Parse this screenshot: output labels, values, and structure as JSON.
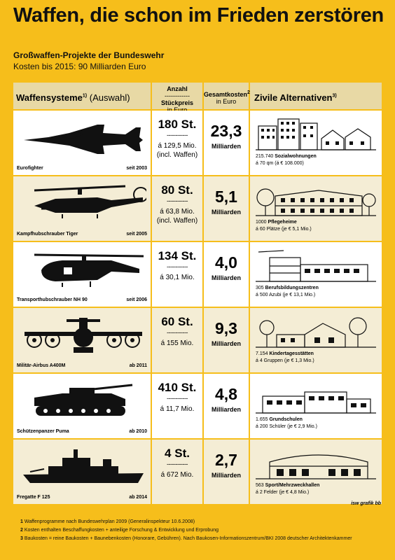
{
  "title": "Waffen, die schon im Frieden zerstören",
  "subtitle": "Großwaffen-Projekte der Bundeswehr",
  "cost_line": "Kosten bis 2015: 90 Milliarden Euro",
  "headers": {
    "weapons": "Waffensysteme",
    "weapons_sup": "1)",
    "weapons_note": " (Auswahl)",
    "count_line1": "Anzahl",
    "count_dash": "------------",
    "count_line2": "Stückpreis",
    "count_line3": "in Euro",
    "total_line1": "Gesamtkosten",
    "total_sup": "2)",
    "total_line2": "in Euro",
    "alt": "Zivile Alternativen",
    "alt_sup": "3)"
  },
  "rows": [
    {
      "name": "Eurofighter",
      "year": "seit 2003",
      "count": "180 St.",
      "dash": "------------",
      "price1": "á 129,5 Mio.",
      "price2": "(incl. Waffen)",
      "total": "23,3",
      "unit": "Milliarden",
      "alt_num": "215.740 ",
      "alt_bold": "Sozialwohnungen",
      "alt2": "á 70 qm (á € 108.000)"
    },
    {
      "name": "Kampfhubschrauber Tiger",
      "year": "seit 2005",
      "count": "80 St.",
      "dash": "------------",
      "price1": "á 63,8 Mio.",
      "price2": "(incl. Waffen)",
      "total": "5,1",
      "unit": "Milliarden",
      "alt_num": "1000 ",
      "alt_bold": "Pflegeheime",
      "alt2": "á 60 Plätze (je € 5,1 Mio.)"
    },
    {
      "name": "Transporthubschrauber NH 90",
      "year": "seit 2006",
      "count": "134 St.",
      "dash": "------------",
      "price1": "á 30,1 Mio.",
      "price2": "",
      "total": "4,0",
      "unit": "Milliarden",
      "alt_num": "305 ",
      "alt_bold": "Berufsbildungszentren",
      "alt2": "á 500 Azubi (je € 13,1 Mio.)"
    },
    {
      "name": "Militär-Airbus A400M",
      "year": "ab 2011",
      "count": "60 St.",
      "dash": "------------",
      "price1": "á 155 Mio.",
      "price2": "",
      "total": "9,3",
      "unit": "Milliarden",
      "alt_num": "7.154 ",
      "alt_bold": "Kindertagesstätten",
      "alt2": "á 4 Gruppen (je € 1,3 Mio.)"
    },
    {
      "name": "Schützenpanzer Puma",
      "year": "ab 2010",
      "count": "410 St.",
      "dash": "------------",
      "price1": "á 11,7 Mio.",
      "price2": "",
      "total": "4,8",
      "unit": "Milliarden",
      "alt_num": "1.655 ",
      "alt_bold": "Grundschulen",
      "alt2": "á 200 Schüler (je € 2,9 Mio.)"
    },
    {
      "name": "Fregatte F 125",
      "year": "ab 2014",
      "count": "4 St.",
      "dash": "------------",
      "price1": "á 672 Mio.",
      "price2": "",
      "total": "2,7",
      "unit": "Milliarden",
      "alt_num": "563 ",
      "alt_bold": "Sport/Mehrzweckhallen",
      "alt2": "á 2 Felder (je € 4,8 Mio.)"
    }
  ],
  "credit": "isw grafik bb",
  "notes": [
    {
      "num": "1",
      "text": " Waffenprogramme nach Bundeswehrplan 2009 (Generalinspekteur 10.6.2008)"
    },
    {
      "num": "2",
      "text": " Kosten enthalten Beschaffungkosten + anteilige Forschung & Entwicklung und Erprobung"
    },
    {
      "num": "3",
      "text": " Baukosten = reine Baukosten + Baunebenkosten (Honorare, Gebühren). Nach Baukosen-Informationszentrum/BKI 2008 deutscher Architektenkammer"
    }
  ]
}
